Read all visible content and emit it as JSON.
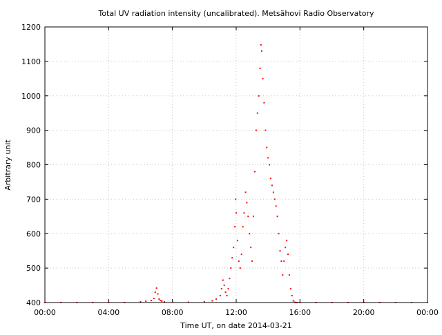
{
  "chart_data": {
    "type": "scatter",
    "title": "Total UV radiation intensity (uncalibrated). Metsähovi Radio Observatory",
    "xlabel": "Time UT, on date 2014-03-21",
    "ylabel": "Arbitrary unit",
    "xlim": [
      "00:00",
      "24:00"
    ],
    "ylim": [
      400,
      1200
    ],
    "x_ticks": [
      "00:00",
      "04:00",
      "08:00",
      "12:00",
      "16:00",
      "20:00",
      "00:00"
    ],
    "y_ticks": [
      400,
      500,
      600,
      700,
      800,
      900,
      1000,
      1100,
      1200
    ],
    "grid": true,
    "marker_color": "#ff0000",
    "series": [
      {
        "x": [
          "00:00",
          "01:00",
          "02:00",
          "03:00",
          "04:00",
          "05:00",
          "06:00",
          "06:20",
          "06:40",
          "06:50",
          "06:55",
          "07:00",
          "07:05",
          "07:10",
          "07:15",
          "07:20",
          "07:30",
          "08:00",
          "09:00",
          "10:00",
          "10:30",
          "10:45",
          "11:00",
          "11:05",
          "11:10",
          "11:15",
          "11:20",
          "11:25",
          "11:30",
          "11:35",
          "11:40",
          "11:45",
          "11:50",
          "11:55",
          "11:58",
          "12:00",
          "12:05",
          "12:10",
          "12:15",
          "12:20",
          "12:25",
          "12:30",
          "12:35",
          "12:40",
          "12:45",
          "12:50",
          "12:55",
          "13:00",
          "13:05",
          "13:10",
          "13:15",
          "13:20",
          "13:25",
          "13:30",
          "13:33",
          "13:36",
          "13:40",
          "13:45",
          "13:50",
          "13:55",
          "14:00",
          "14:05",
          "14:10",
          "14:15",
          "14:20",
          "14:25",
          "14:30",
          "14:35",
          "14:40",
          "14:45",
          "14:50",
          "14:55",
          "15:00",
          "15:05",
          "15:10",
          "15:15",
          "15:20",
          "15:25",
          "15:30",
          "15:35",
          "15:40",
          "15:45",
          "15:50",
          "16:00",
          "17:00",
          "18:00",
          "19:00",
          "20:00",
          "21:00",
          "22:00",
          "23:00",
          "24:00"
        ],
        "y": [
          400,
          400,
          400,
          400,
          400,
          400,
          402,
          404,
          406,
          412,
          430,
          442,
          425,
          410,
          406,
          404,
          402,
          401,
          401,
          402,
          405,
          410,
          420,
          440,
          465,
          450,
          430,
          420,
          440,
          470,
          500,
          530,
          560,
          620,
          700,
          660,
          580,
          520,
          500,
          540,
          620,
          660,
          720,
          690,
          650,
          600,
          560,
          520,
          650,
          780,
          900,
          950,
          1000,
          1080,
          1148,
          1130,
          1050,
          980,
          900,
          850,
          820,
          800,
          760,
          740,
          720,
          700,
          680,
          650,
          600,
          550,
          520,
          480,
          520,
          560,
          580,
          540,
          480,
          440,
          420,
          405,
          401,
          400,
          400,
          400,
          400,
          400,
          400,
          400,
          400,
          400,
          400,
          400
        ]
      }
    ]
  }
}
